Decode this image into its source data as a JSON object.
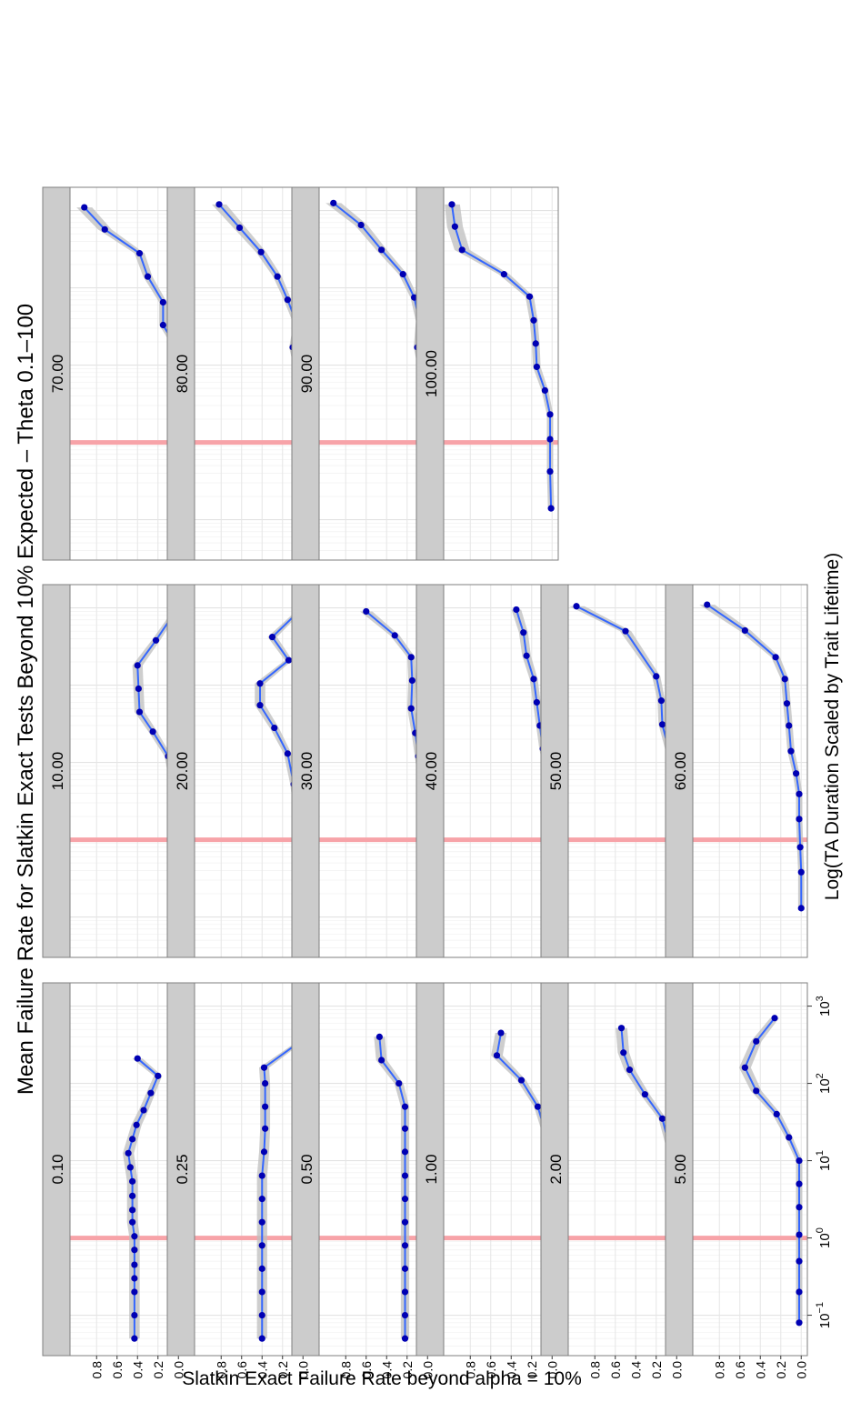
{
  "chart_data": {
    "type": "line",
    "title": "Mean Failure Rate for Slatkin Exact Tests Beyond 10% Expected – Theta 0.1–100",
    "xlabel": "Log(TA Duration Scaled by Trait Lifetime)",
    "ylabel": "Slatkin Exact Failure Rate beyond alpha = 10%",
    "x_scale": "log10",
    "xlim": [
      0.03,
      2000
    ],
    "ylim": [
      0,
      1
    ],
    "x_ticks": [
      {
        "v": 0.1,
        "e": "−1"
      },
      {
        "v": 1,
        "e": "0"
      },
      {
        "v": 10,
        "e": "1"
      },
      {
        "v": 100,
        "e": "2"
      },
      {
        "v": 1000,
        "e": "3"
      }
    ],
    "y_ticks": [
      "0.0",
      "0.2",
      "0.4",
      "0.6",
      "0.8"
    ],
    "y_tick_values": [
      0.0,
      0.2,
      0.4,
      0.6,
      0.8
    ],
    "reference_line_x": 1,
    "grid": true,
    "line_color": "#3366ff",
    "point_color": "#0000b3",
    "band_color": "#bdbdbd",
    "ref_color": "#f7a3a8",
    "strip_color": "#cccccc",
    "panels": [
      {
        "label": "0.10",
        "x": [
          0.05,
          0.1,
          0.2,
          0.3,
          0.45,
          0.7,
          1.05,
          1.6,
          2.3,
          3.5,
          5.4,
          8.2,
          12.5,
          19,
          29,
          45,
          75,
          125,
          210
        ],
        "y": [
          0.43,
          0.43,
          0.43,
          0.43,
          0.43,
          0.43,
          0.43,
          0.45,
          0.45,
          0.45,
          0.45,
          0.47,
          0.49,
          0.45,
          0.41,
          0.34,
          0.27,
          0.2,
          0.4
        ]
      },
      {
        "label": "0.25",
        "x": [
          0.05,
          0.1,
          0.2,
          0.4,
          0.8,
          1.6,
          3.2,
          6.4,
          13,
          26,
          50,
          100,
          160,
          310
        ],
        "y": [
          0.4,
          0.4,
          0.4,
          0.4,
          0.4,
          0.4,
          0.4,
          0.4,
          0.38,
          0.37,
          0.37,
          0.37,
          0.38,
          0.08
        ]
      },
      {
        "label": "0.50",
        "x": [
          0.05,
          0.1,
          0.2,
          0.4,
          0.8,
          1.6,
          3.2,
          6.4,
          13,
          26,
          50,
          100,
          200,
          400
        ],
        "y": [
          0.22,
          0.22,
          0.22,
          0.22,
          0.22,
          0.22,
          0.22,
          0.22,
          0.22,
          0.22,
          0.22,
          0.28,
          0.45,
          0.47
        ]
      },
      {
        "label": "1.00",
        "x": [
          0.15,
          0.3,
          0.55,
          1.0,
          1.7,
          3.0,
          5.2,
          9.0,
          15,
          27,
          50,
          110,
          230,
          450
        ],
        "y": [
          0.02,
          0.02,
          0.02,
          0.02,
          0.02,
          0.02,
          0.03,
          0.04,
          0.05,
          0.08,
          0.14,
          0.3,
          0.54,
          0.5
        ]
      },
      {
        "label": "2.00",
        "x": [
          0.08,
          0.2,
          0.42,
          0.9,
          1.9,
          3.9,
          8.1,
          17,
          35,
          72,
          150,
          250,
          520
        ],
        "y": [
          0.02,
          0.02,
          0.02,
          0.02,
          0.03,
          0.04,
          0.05,
          0.08,
          0.14,
          0.31,
          0.46,
          0.52,
          0.54
        ]
      },
      {
        "label": "5.00",
        "x": [
          0.08,
          0.2,
          0.5,
          1.1,
          2.5,
          5.0,
          10,
          20,
          40,
          80,
          160,
          350,
          700
        ],
        "y": [
          0.02,
          0.02,
          0.02,
          0.02,
          0.02,
          0.02,
          0.02,
          0.12,
          0.24,
          0.44,
          0.55,
          0.44,
          0.26
        ]
      },
      {
        "label": "10.00",
        "x": [
          0.1,
          0.28,
          0.6,
          1.3,
          2.8,
          6.0,
          12,
          25,
          45,
          90,
          180,
          380,
          750
        ],
        "y": [
          0.02,
          0.02,
          0.02,
          0.04,
          0.04,
          0.06,
          0.1,
          0.25,
          0.38,
          0.39,
          0.4,
          0.22,
          0.07
        ]
      },
      {
        "label": "20.00",
        "x": [
          0.1,
          0.33,
          0.7,
          1.3,
          2.5,
          5.2,
          13,
          28,
          55,
          105,
          210,
          420,
          850
        ],
        "y": [
          0.02,
          0.03,
          0.03,
          0.05,
          0.06,
          0.09,
          0.15,
          0.28,
          0.42,
          0.42,
          0.14,
          0.3,
          0.06
        ]
      },
      {
        "label": "30.00",
        "x": [
          0.12,
          0.4,
          0.85,
          1.6,
          3.5,
          6.2,
          12,
          24,
          50,
          115,
          230,
          440,
          900
        ],
        "y": [
          0.02,
          0.02,
          0.02,
          0.0,
          0.03,
          0.06,
          0.09,
          0.12,
          0.16,
          0.15,
          0.16,
          0.32,
          0.6
        ]
      },
      {
        "label": "40.00",
        "x": [
          0.12,
          0.37,
          0.85,
          1.7,
          3.5,
          8.0,
          15,
          30,
          60,
          120,
          240,
          480,
          950
        ],
        "y": [
          0.01,
          0.01,
          0.01,
          0.01,
          0.01,
          0.05,
          0.09,
          0.12,
          0.15,
          0.18,
          0.25,
          0.28,
          0.35
        ]
      },
      {
        "label": "50.00",
        "x": [
          0.13,
          0.38,
          0.9,
          2.0,
          4.0,
          7.5,
          15,
          31,
          63,
          130,
          500,
          1050
        ],
        "y": [
          0.01,
          0.01,
          0.01,
          0.02,
          0.02,
          0.06,
          0.08,
          0.14,
          0.15,
          0.2,
          0.5,
          0.98
        ]
      },
      {
        "label": "60.00",
        "x": [
          0.13,
          0.38,
          0.8,
          1.85,
          3.9,
          7.2,
          14,
          30,
          58,
          120,
          230,
          510,
          1100
        ],
        "y": [
          0.0,
          0.0,
          0.01,
          0.02,
          0.02,
          0.05,
          0.1,
          0.12,
          0.14,
          0.16,
          0.25,
          0.55,
          0.92
        ]
      },
      {
        "label": "70.00",
        "x": [
          0.14,
          0.38,
          0.95,
          2.0,
          4.1,
          8.5,
          16,
          33,
          65,
          140,
          280,
          570,
          1100
        ],
        "y": [
          0.0,
          0.01,
          0.01,
          0.01,
          0.02,
          0.05,
          0.01,
          0.15,
          0.15,
          0.3,
          0.38,
          0.72,
          0.92
        ]
      },
      {
        "label": "80.00",
        "x": [
          0.15,
          0.42,
          0.95,
          2.3,
          4.5,
          8.4,
          17,
          34,
          70,
          140,
          290,
          600,
          1200
        ],
        "y": [
          0.01,
          0.02,
          0.02,
          0.03,
          0.03,
          0.05,
          0.1,
          0.06,
          0.15,
          0.25,
          0.41,
          0.62,
          0.82
        ]
      },
      {
        "label": "90.00",
        "x": [
          0.14,
          0.45,
          1.0,
          2.2,
          4.3,
          9.0,
          17,
          37,
          75,
          150,
          310,
          650,
          1250
        ],
        "y": [
          0.01,
          0.02,
          0.02,
          0.03,
          0.03,
          0.06,
          0.1,
          0.08,
          0.13,
          0.24,
          0.45,
          0.65,
          0.92
        ]
      },
      {
        "label": "100.00",
        "x": [
          0.14,
          0.42,
          1.1,
          2.3,
          4.7,
          9.5,
          19,
          38,
          77,
          150,
          310,
          620,
          1200
        ],
        "y": [
          0.01,
          0.02,
          0.02,
          0.02,
          0.07,
          0.15,
          0.16,
          0.18,
          0.22,
          0.47,
          0.88,
          0.95,
          0.98
        ]
      }
    ]
  }
}
